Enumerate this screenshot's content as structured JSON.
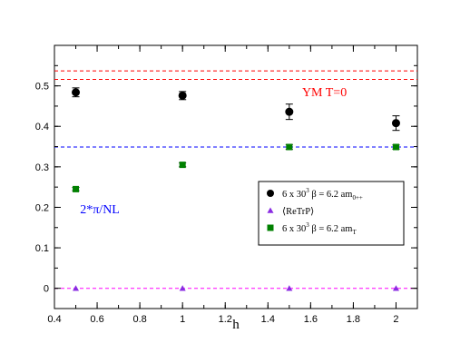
{
  "chart_data": {
    "type": "scatter",
    "xlabel": "h",
    "ylabel": "",
    "xlim": [
      0.4,
      2.1
    ],
    "ylim": [
      -0.05,
      0.6
    ],
    "x_ticks": [
      0.4,
      0.6,
      0.8,
      1.0,
      1.2,
      1.4,
      1.6,
      1.8,
      2.0
    ],
    "x_tick_labels": [
      "0.4",
      "0.6",
      "0.8",
      "1",
      "1.2",
      "1.4",
      "1.6",
      "1.8",
      "2"
    ],
    "y_ticks": [
      0,
      0.1,
      0.2,
      0.3,
      0.4,
      0.5
    ],
    "y_tick_labels": [
      "0",
      "0.1",
      "0.2",
      "0.3",
      "0.4",
      "0.5"
    ],
    "grid": false,
    "series": [
      {
        "label_main": "6 x 30",
        "label_sup": "3",
        "label_rest": "  β = 6.2  am",
        "label_sub": "0++",
        "marker": "circle",
        "color": "#000000",
        "points": [
          {
            "x": 0.5,
            "y": 0.484,
            "err": 0.011
          },
          {
            "x": 1.0,
            "y": 0.476,
            "err": 0.01
          },
          {
            "x": 1.5,
            "y": 0.436,
            "err": 0.019
          },
          {
            "x": 2.0,
            "y": 0.408,
            "err": 0.018
          }
        ]
      },
      {
        "label_main": "⟨ReTrP⟩",
        "label_sup": "",
        "label_rest": "",
        "label_sub": "",
        "marker": "triangle",
        "color": "#8a2be2",
        "points": [
          {
            "x": 0.5,
            "y": 0.0,
            "err": 0
          },
          {
            "x": 1.0,
            "y": 0.0,
            "err": 0
          },
          {
            "x": 1.5,
            "y": 0.0,
            "err": 0
          },
          {
            "x": 2.0,
            "y": 0.0,
            "err": 0
          }
        ]
      },
      {
        "label_main": "6 x 30",
        "label_sup": "3",
        "label_rest": "  β = 6.2  am",
        "label_sub": "T",
        "marker": "square",
        "color": "#008000",
        "points": [
          {
            "x": 0.5,
            "y": 0.245,
            "err": 0.004
          },
          {
            "x": 1.0,
            "y": 0.305,
            "err": 0.005
          },
          {
            "x": 1.5,
            "y": 0.349,
            "err": 0.006
          },
          {
            "x": 2.0,
            "y": 0.349,
            "err": 0.005
          }
        ]
      }
    ],
    "reference_lines": [
      {
        "y": 0.537,
        "color": "#ff0000"
      },
      {
        "y": 0.516,
        "color": "#ff0000"
      },
      {
        "y": 0.349,
        "color": "#0000ff"
      },
      {
        "y": 0.0,
        "color": "#ff00ff"
      }
    ],
    "annotations": [
      {
        "text": "YM   T=0",
        "x": 1.56,
        "y": 0.475,
        "color": "#ff0000"
      },
      {
        "text": "2*π/NL",
        "x": 0.52,
        "y": 0.185,
        "color": "#0000ff"
      }
    ],
    "legend_placement": "center-right"
  }
}
